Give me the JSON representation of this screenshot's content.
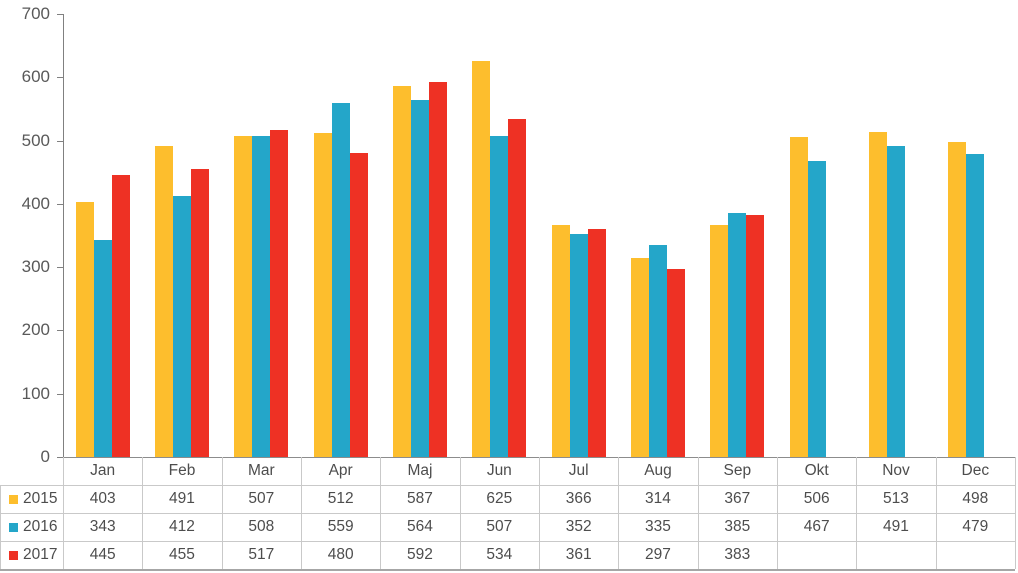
{
  "chart_data": {
    "type": "bar",
    "title": "",
    "xlabel": "",
    "ylabel": "",
    "categories": [
      "Jan",
      "Feb",
      "Mar",
      "Apr",
      "Maj",
      "Jun",
      "Jul",
      "Aug",
      "Sep",
      "Okt",
      "Nov",
      "Dec"
    ],
    "series": [
      {
        "name": "2015",
        "color": "#FDBE2D",
        "values": [
          403,
          491,
          507,
          512,
          587,
          625,
          366,
          314,
          367,
          506,
          513,
          498
        ]
      },
      {
        "name": "2016",
        "color": "#24A6C9",
        "values": [
          343,
          412,
          508,
          559,
          564,
          507,
          352,
          335,
          385,
          467,
          491,
          479
        ]
      },
      {
        "name": "2017",
        "color": "#EE3124",
        "values": [
          445,
          455,
          517,
          480,
          592,
          534,
          361,
          297,
          383,
          null,
          null,
          null
        ]
      }
    ],
    "ylim": [
      0,
      700
    ],
    "yticks": [
      0,
      100,
      200,
      300,
      400,
      500,
      600,
      700
    ],
    "grid": false,
    "legend_position": "data-table-left",
    "data_table": true
  },
  "colors": {
    "axis_line": "#808080",
    "table_border": "#c9c9c9",
    "table_zero_line": "#8c8c8c",
    "table_bottom_border": "#a6a6a6",
    "axis_text": "#595959",
    "table_text": "#4d4d4d",
    "background": "#ffffff"
  }
}
